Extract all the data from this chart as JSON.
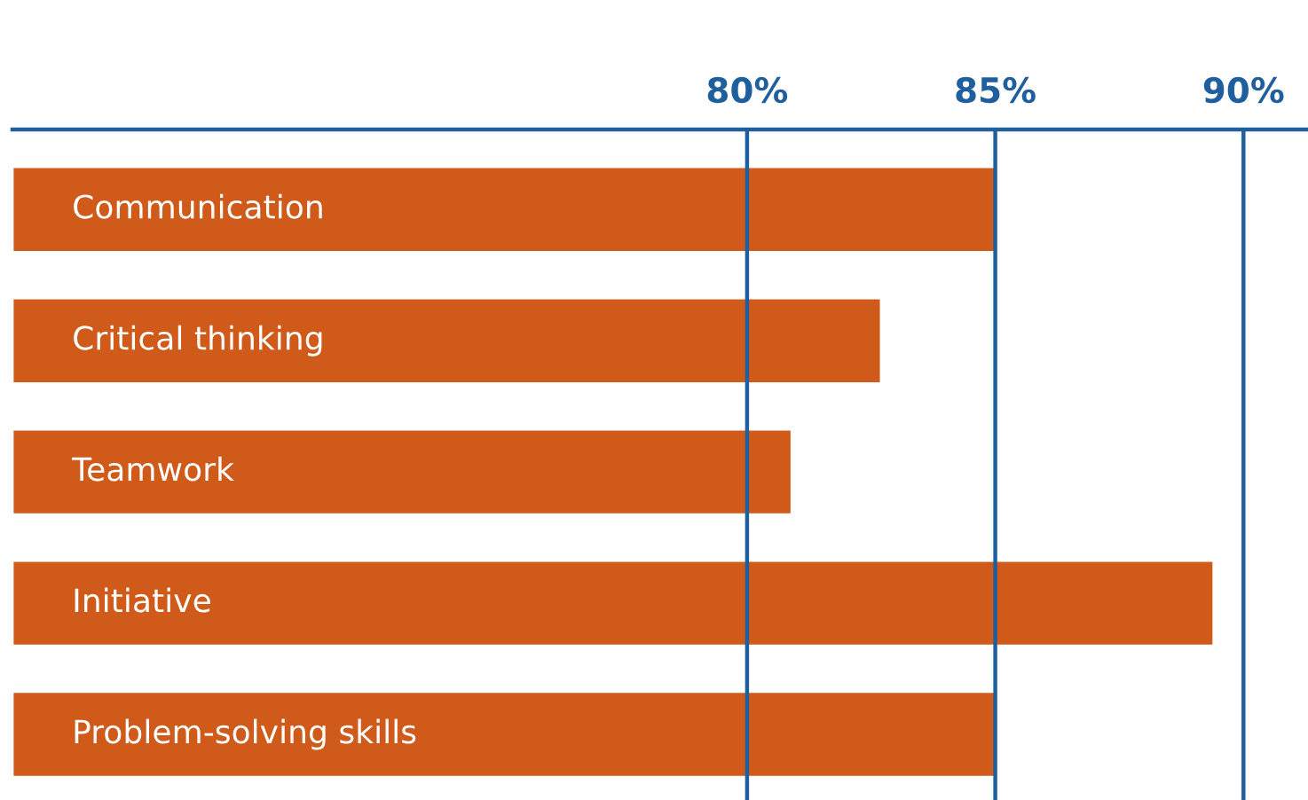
{
  "chart_data": {
    "type": "bar",
    "orientation": "horizontal",
    "categories": [
      "Communication",
      "Critical thinking",
      "Teamwork",
      "Initiative",
      "Problem-solving skills"
    ],
    "values": [
      85,
      82.7,
      80.9,
      89.4,
      85
    ],
    "color": "#d05a1a",
    "xlim": [
      65.2,
      91.3
    ],
    "xticks": [
      {
        "value": 80,
        "label": "80%"
      },
      {
        "value": 85,
        "label": "85%"
      },
      {
        "value": 90,
        "label": "90%"
      }
    ],
    "grid": "x",
    "tick_labels": "x"
  }
}
